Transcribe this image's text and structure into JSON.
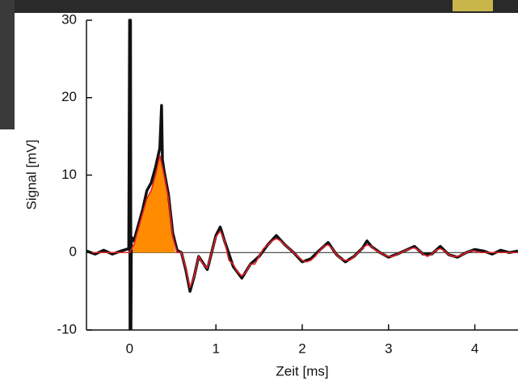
{
  "chart_data": {
    "type": "line",
    "x_label": "Zeit [ms]",
    "y_label": "Signal [mV]",
    "xlim": [
      -0.5,
      4.5
    ],
    "xticks": [
      0,
      1,
      2,
      3,
      4
    ],
    "ylim": [
      -10,
      30
    ],
    "yticks": [
      -10,
      0,
      10,
      20,
      30
    ],
    "fill_area": {
      "color": "#ff8c00",
      "x": [
        0.03,
        0.05,
        0.1,
        0.15,
        0.2,
        0.25,
        0.3,
        0.35,
        0.4,
        0.45,
        0.5,
        0.53
      ],
      "values": [
        0,
        1,
        3,
        5,
        7,
        8,
        10,
        12.5,
        10,
        7,
        2,
        0
      ]
    },
    "series": [
      {
        "color": "#111111",
        "x": [
          -0.5,
          -0.4,
          -0.3,
          -0.2,
          -0.1,
          -0.01,
          0,
          0.005,
          0.01,
          0.015,
          0.02,
          0.05,
          0.1,
          0.15,
          0.2,
          0.25,
          0.3,
          0.35,
          0.37,
          0.38,
          0.4,
          0.45,
          0.5,
          0.55,
          0.6,
          0.65,
          0.7,
          0.75,
          0.8,
          0.9,
          1.0,
          1.05,
          1.1,
          1.2,
          1.3,
          1.4,
          1.5,
          1.6,
          1.7,
          1.8,
          1.9,
          2.0,
          2.1,
          2.2,
          2.3,
          2.4,
          2.5,
          2.6,
          2.7,
          2.75,
          2.8,
          2.9,
          3.0,
          3.1,
          3.2,
          3.3,
          3.4,
          3.5,
          3.6,
          3.7,
          3.8,
          3.9,
          4.0,
          4.1,
          4.2,
          4.3,
          4.4,
          4.5
        ],
        "values": [
          0.2,
          -0.2,
          0.3,
          -0.2,
          0.2,
          0.5,
          30,
          -10,
          30,
          -10,
          2,
          1.5,
          3.5,
          5.5,
          8,
          9,
          11,
          13.5,
          19,
          12,
          10.5,
          7.5,
          2.5,
          0.3,
          0,
          -2.2,
          -5,
          -3,
          -0.5,
          -2.2,
          2.2,
          3.3,
          1.5,
          -1.8,
          -3.3,
          -1.5,
          -0.5,
          1,
          2.2,
          1,
          0,
          -1.2,
          -0.8,
          0.3,
          1.3,
          -0.3,
          -1.2,
          -0.5,
          0.6,
          1.5,
          0.8,
          0,
          -0.6,
          -0.2,
          0.3,
          0.8,
          -0.2,
          -0.2,
          0.8,
          -0.3,
          -0.6,
          0,
          0.4,
          0.2,
          -0.2,
          0.3,
          0,
          0.2
        ]
      },
      {
        "color": "#e8202a",
        "x": [
          -0.5,
          -0.45,
          -0.4,
          -0.35,
          -0.3,
          -0.25,
          -0.2,
          -0.15,
          -0.1,
          -0.05,
          0,
          0.05,
          0.1,
          0.15,
          0.2,
          0.25,
          0.3,
          0.35,
          0.4,
          0.45,
          0.5,
          0.55,
          0.6,
          0.65,
          0.7,
          0.75,
          0.8,
          0.85,
          0.9,
          0.95,
          1.0,
          1.05,
          1.1,
          1.15,
          1.2,
          1.25,
          1.3,
          1.35,
          1.4,
          1.45,
          1.5,
          1.55,
          1.6,
          1.65,
          1.7,
          1.75,
          1.8,
          1.85,
          1.9,
          1.95,
          2.0,
          2.05,
          2.1,
          2.15,
          2.2,
          2.25,
          2.3,
          2.35,
          2.4,
          2.45,
          2.5,
          2.55,
          2.6,
          2.65,
          2.7,
          2.75,
          2.8,
          2.85,
          2.9,
          2.95,
          3.0,
          3.05,
          3.1,
          3.15,
          3.2,
          3.25,
          3.3,
          3.35,
          3.4,
          3.45,
          3.5,
          3.55,
          3.6,
          3.65,
          3.7,
          3.75,
          3.8,
          3.85,
          3.9,
          3.95,
          4.0,
          4.05,
          4.1,
          4.15,
          4.2,
          4.25,
          4.3,
          4.35,
          4.4,
          4.45,
          4.5
        ],
        "values": [
          0,
          0,
          0,
          0,
          0,
          0,
          0,
          0,
          0,
          0,
          0,
          1,
          3,
          5,
          7,
          8,
          10,
          12.5,
          10,
          7,
          2,
          0,
          0,
          -2,
          -4.5,
          -3,
          -0.5,
          -1.5,
          -2,
          0,
          2,
          2.8,
          1.5,
          -1,
          -1.5,
          -2.5,
          -3,
          -2.5,
          -1.5,
          -1.5,
          -0.5,
          0.5,
          1,
          1.5,
          1.8,
          1.5,
          1,
          0.5,
          0,
          -0.5,
          -1,
          -1.2,
          -1,
          -0.5,
          0.2,
          0.8,
          1,
          0.5,
          -0.3,
          -0.8,
          -1,
          -1,
          -0.5,
          0,
          0.6,
          1,
          0.8,
          0.3,
          0,
          -0.3,
          -0.5,
          -0.5,
          -0.2,
          0,
          0.3,
          0.5,
          0.6,
          0.3,
          -0.2,
          -0.5,
          -0.2,
          0.3,
          0.5,
          0.2,
          -0.3,
          -0.5,
          -0.5,
          -0.3,
          0,
          0.2,
          0.2,
          0,
          0,
          0,
          0,
          0,
          0,
          0,
          0,
          0,
          0
        ]
      }
    ]
  }
}
